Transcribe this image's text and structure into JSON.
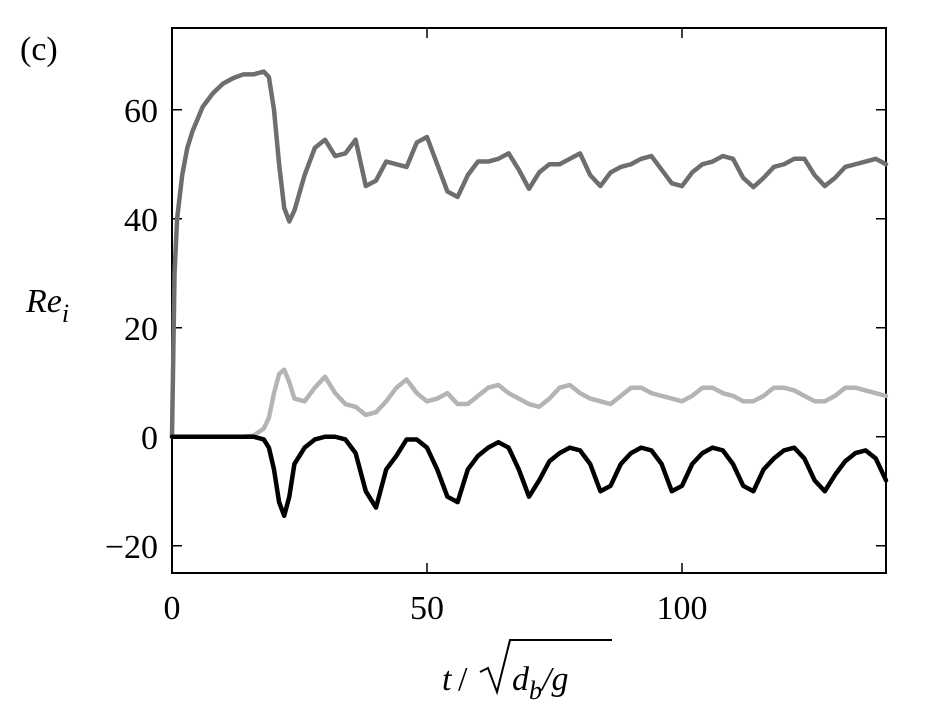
{
  "chart_data": {
    "type": "line",
    "annotation": "(c)",
    "ylabel": [
      "Re",
      "i"
    ],
    "xlabel": [
      "t",
      "/",
      "d",
      "b",
      "/g"
    ],
    "x": [
      0,
      0.5,
      1,
      2,
      3,
      4,
      6,
      8,
      10,
      12,
      14,
      16,
      18,
      19,
      20,
      21,
      22,
      23,
      24,
      26,
      28,
      30,
      32,
      34,
      36,
      38,
      40,
      42,
      44,
      46,
      48,
      50,
      52,
      54,
      56,
      58,
      60,
      62,
      64,
      66,
      68,
      70,
      72,
      74,
      76,
      78,
      80,
      82,
      84,
      86,
      88,
      90,
      92,
      94,
      96,
      98,
      100,
      102,
      104,
      106,
      108,
      110,
      112,
      114,
      116,
      118,
      120,
      122,
      124,
      126,
      128,
      130,
      132,
      134,
      136,
      138,
      140
    ],
    "series": [
      {
        "color": "#6e6e6e",
        "values": [
          0,
          30,
          40,
          48,
          53,
          56,
          60.5,
          63,
          64.8,
          65.8,
          66.5,
          66.5,
          67,
          66,
          60,
          50,
          42,
          39.5,
          41.5,
          48,
          53,
          54.5,
          51.5,
          52,
          54.5,
          46,
          47,
          50.5,
          50,
          49.5,
          54,
          55,
          50,
          45,
          44,
          48,
          50.5,
          50.5,
          51,
          52,
          49,
          45.5,
          48.5,
          50,
          50,
          51,
          52,
          48,
          46,
          48.5,
          49.5,
          50,
          51,
          51.5,
          49,
          46.5,
          46,
          48.5,
          50,
          50.5,
          51.5,
          51,
          47.5,
          45.8,
          47.5,
          49.5,
          50,
          51,
          51,
          48,
          46,
          47.5,
          49.5,
          50,
          50.5,
          51,
          50
        ]
      },
      {
        "color": "#b4b4b4",
        "values": [
          0,
          0,
          0,
          0,
          0,
          0,
          0,
          0,
          0,
          0,
          0,
          0.2,
          1.5,
          3.5,
          8,
          11.5,
          12.3,
          10,
          7,
          6.5,
          9,
          11,
          8,
          6,
          5.5,
          4,
          4.5,
          6.5,
          9,
          10.5,
          8,
          6.5,
          7,
          8,
          6,
          6,
          7.5,
          9,
          9.5,
          8,
          7,
          6,
          5.5,
          7,
          9,
          9.5,
          8,
          7,
          6.5,
          6,
          7.5,
          9,
          9,
          8,
          7.5,
          7,
          6.5,
          7.5,
          9,
          9,
          8,
          7.5,
          6.5,
          6.5,
          7.5,
          9,
          9,
          8.5,
          7.5,
          6.5,
          6.5,
          7.5,
          9,
          9,
          8.5,
          8,
          7.5
        ]
      },
      {
        "color": "#000000",
        "values": [
          0,
          0,
          0,
          0,
          0,
          0,
          0,
          0,
          0,
          0,
          0,
          0,
          -0.5,
          -2,
          -6,
          -12,
          -14.5,
          -11,
          -5,
          -2,
          -0.5,
          0,
          0,
          -0.5,
          -3,
          -10,
          -13,
          -6,
          -3.5,
          -0.5,
          -0.5,
          -2,
          -6,
          -11,
          -12,
          -6,
          -3.5,
          -2,
          -1,
          -2,
          -6,
          -11,
          -8,
          -4.5,
          -3,
          -2,
          -2.5,
          -5,
          -10,
          -9,
          -5,
          -3,
          -2,
          -2.5,
          -5,
          -10,
          -9,
          -5,
          -3,
          -2,
          -2.5,
          -5,
          -9,
          -10,
          -6,
          -4,
          -2.5,
          -2,
          -4,
          -8,
          -10,
          -7,
          -4.5,
          -3,
          -2.5,
          -4,
          -8
        ]
      }
    ],
    "xlim": [
      0,
      140
    ],
    "xticks": [
      0,
      50,
      100
    ],
    "ylim": [
      -25,
      75
    ],
    "yticks": [
      {
        "value": -20,
        "label": "−20"
      },
      0,
      20,
      40,
      60
    ]
  }
}
